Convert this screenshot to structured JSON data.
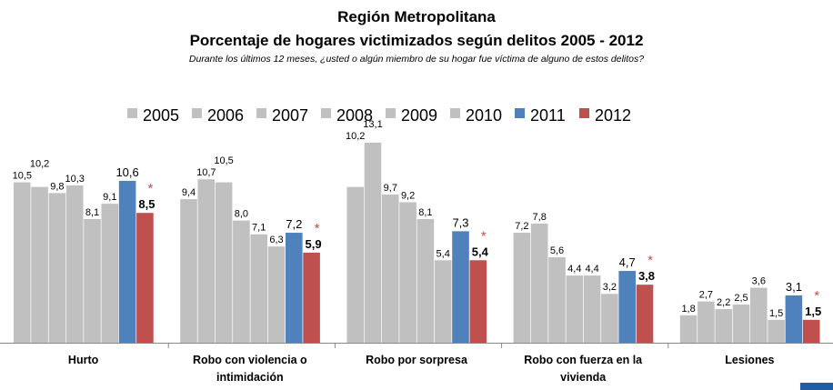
{
  "chart_data": {
    "type": "bar",
    "title": "Región Metropolitana",
    "subtitle": "Porcentaje de hogares victimizados según delitos 2005 - 2012",
    "question": "Durante los últimos 12 meses, ¿usted o algún miembro de su hogar fue víctima de alguno de estos delitos?",
    "legend_position": "top",
    "grid": false,
    "ylim": [
      0,
      14
    ],
    "categories": [
      [
        "Hurto"
      ],
      [
        "Robo con violencia o",
        "intimidación"
      ],
      [
        "Robo por sorpresa"
      ],
      [
        "Robo con fuerza en la",
        "vivienda"
      ],
      [
        "Lesiones"
      ]
    ],
    "series": [
      {
        "name": "2005",
        "color": "#c0c0c0",
        "values": [
          10.5,
          9.4,
          10.2,
          7.2,
          1.8
        ]
      },
      {
        "name": "2006",
        "color": "#c0c0c0",
        "values": [
          10.2,
          10.7,
          13.1,
          7.8,
          2.7
        ]
      },
      {
        "name": "2007",
        "color": "#c0c0c0",
        "values": [
          9.8,
          10.5,
          9.7,
          5.6,
          2.2
        ]
      },
      {
        "name": "2008",
        "color": "#c0c0c0",
        "values": [
          10.3,
          8.0,
          9.2,
          4.4,
          2.5
        ]
      },
      {
        "name": "2009",
        "color": "#c0c0c0",
        "values": [
          8.1,
          7.1,
          8.1,
          4.4,
          3.6
        ]
      },
      {
        "name": "2010",
        "color": "#c0c0c0",
        "values": [
          9.1,
          6.3,
          5.4,
          3.2,
          1.5
        ]
      },
      {
        "name": "2011",
        "color": "#4f81bd",
        "values": [
          10.6,
          7.2,
          7.3,
          4.7,
          3.1
        ]
      },
      {
        "name": "2012",
        "color": "#c0504d",
        "values": [
          8.5,
          5.9,
          5.4,
          3.8,
          1.5
        ]
      }
    ],
    "significance_marker": "*",
    "significance_marker_color": "#c0504d",
    "significant": [
      true,
      true,
      true,
      true,
      true
    ]
  }
}
